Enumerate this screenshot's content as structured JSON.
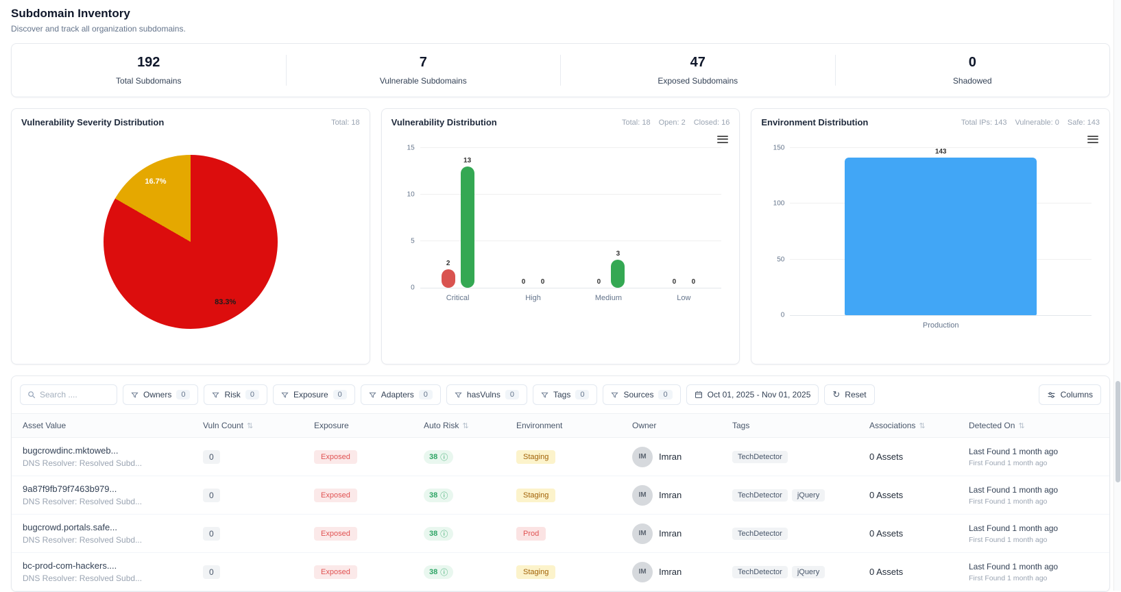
{
  "header": {
    "title": "Subdomain Inventory",
    "subtitle": "Discover and track all organization subdomains."
  },
  "stats": [
    {
      "value": "192",
      "label": "Total Subdomains"
    },
    {
      "value": "7",
      "label": "Vulnerable Subdomains"
    },
    {
      "value": "47",
      "label": "Exposed Subdomains"
    },
    {
      "value": "0",
      "label": "Shadowed"
    }
  ],
  "chart_data": [
    {
      "id": "severity",
      "type": "pie",
      "title": "Vulnerability Severity Distribution",
      "meta": [
        "Total: 18"
      ],
      "slices": [
        {
          "label": "83.3%",
          "value": 83.3,
          "color": "#dc0d0d",
          "labelColor": "#1c1c1c"
        },
        {
          "label": "16.7%",
          "value": 16.7,
          "color": "#e5a800",
          "labelColor": "#ffffff"
        }
      ]
    },
    {
      "id": "vulnDist",
      "type": "bar",
      "title": "Vulnerability Distribution",
      "meta": [
        "Total: 18",
        "Open: 2",
        "Closed: 16"
      ],
      "categories": [
        "Critical",
        "High",
        "Medium",
        "Low"
      ],
      "series": [
        {
          "name": "Open",
          "color": "#d9534f",
          "values": [
            2,
            0,
            0,
            0
          ]
        },
        {
          "name": "Closed",
          "color": "#34a853",
          "values": [
            13,
            0,
            3,
            0
          ]
        }
      ],
      "ylim": [
        0,
        15
      ],
      "yticks": [
        0,
        5,
        10,
        15
      ],
      "grid": true
    },
    {
      "id": "envDist",
      "type": "bar",
      "title": "Environment Distribution",
      "meta": [
        "Total IPs: 143",
        "Vulnerable: 0",
        "Safe: 143"
      ],
      "categories": [
        "Production"
      ],
      "series": [
        {
          "name": "IPs",
          "color": "#41a6f6",
          "values": [
            143
          ]
        }
      ],
      "ylim": [
        0,
        150
      ],
      "yticks": [
        0,
        50,
        100,
        150
      ],
      "grid": true
    }
  ],
  "filters": {
    "search_placeholder": "Search ....",
    "chips": [
      {
        "label": "Owners",
        "count": "0"
      },
      {
        "label": "Risk",
        "count": "0"
      },
      {
        "label": "Exposure",
        "count": "0"
      },
      {
        "label": "Adapters",
        "count": "0"
      },
      {
        "label": "hasVulns",
        "count": "0"
      },
      {
        "label": "Tags",
        "count": "0"
      },
      {
        "label": "Sources",
        "count": "0"
      }
    ],
    "date_range": "Oct 01, 2025 - Nov 01, 2025",
    "reset_label": "Reset",
    "columns_label": "Columns"
  },
  "table": {
    "columns": [
      {
        "label": "Asset Value",
        "sortable": false
      },
      {
        "label": "Vuln Count",
        "sortable": true
      },
      {
        "label": "Exposure",
        "sortable": false
      },
      {
        "label": "Auto Risk",
        "sortable": true
      },
      {
        "label": "Environment",
        "sortable": false
      },
      {
        "label": "Owner",
        "sortable": false
      },
      {
        "label": "Tags",
        "sortable": false
      },
      {
        "label": "Associations",
        "sortable": true
      },
      {
        "label": "Detected On",
        "sortable": true
      }
    ],
    "rows": [
      {
        "asset": "bugcrowdinc.mktoweb...",
        "asset_sub": "DNS Resolver: Resolved Subd...",
        "vuln_count": "0",
        "exposure": "Exposed",
        "auto_risk": "38",
        "environment": "Staging",
        "environment_type": "staging",
        "owner_initials": "IM",
        "owner_name": "Imran",
        "tags": [
          "TechDetector"
        ],
        "associations": "0 Assets",
        "detected_last": "Last Found 1 month ago",
        "detected_first": "First Found 1 month ago"
      },
      {
        "asset": "9a87f9fb79f7463b979...",
        "asset_sub": "DNS Resolver: Resolved Subd...",
        "vuln_count": "0",
        "exposure": "Exposed",
        "auto_risk": "38",
        "environment": "Staging",
        "environment_type": "staging",
        "owner_initials": "IM",
        "owner_name": "Imran",
        "tags": [
          "TechDetector",
          "jQuery"
        ],
        "associations": "0 Assets",
        "detected_last": "Last Found 1 month ago",
        "detected_first": "First Found 1 month ago"
      },
      {
        "asset": "bugcrowd.portals.safe...",
        "asset_sub": "DNS Resolver: Resolved Subd...",
        "vuln_count": "0",
        "exposure": "Exposed",
        "auto_risk": "38",
        "environment": "Prod",
        "environment_type": "prod",
        "owner_initials": "IM",
        "owner_name": "Imran",
        "tags": [
          "TechDetector"
        ],
        "associations": "0 Assets",
        "detected_last": "Last Found 1 month ago",
        "detected_first": "First Found 1 month ago"
      },
      {
        "asset": "bc-prod-com-hackers....",
        "asset_sub": "DNS Resolver: Resolved Subd...",
        "vuln_count": "0",
        "exposure": "Exposed",
        "auto_risk": "38",
        "environment": "Staging",
        "environment_type": "staging",
        "owner_initials": "IM",
        "owner_name": "Imran",
        "tags": [
          "TechDetector",
          "jQuery"
        ],
        "associations": "0 Assets",
        "detected_last": "Last Found 1 month ago",
        "detected_first": "First Found 1 month ago"
      }
    ]
  },
  "colors": {
    "pie_critical": "#dc0d0d",
    "pie_high": "#e5a800",
    "bar_open": "#d9534f",
    "bar_closed": "#34a853",
    "bar_production": "#41a6f6",
    "badge_exposed_text": "#e05252",
    "badge_risk_text": "#2fa566",
    "badge_staging_text": "#a16207"
  }
}
